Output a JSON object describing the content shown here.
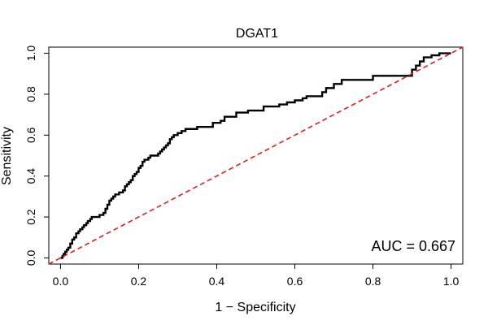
{
  "chart_data": {
    "type": "line",
    "title": "DGAT1",
    "xlabel": "1 − Specificity",
    "ylabel": "Sensitivity",
    "xlim": [
      -0.03,
      1.03
    ],
    "ylim": [
      -0.03,
      1.03
    ],
    "xticks": [
      0.0,
      0.2,
      0.4,
      0.6,
      0.8,
      1.0
    ],
    "xtick_labels": [
      "0.0",
      "0.2",
      "0.4",
      "0.6",
      "0.8",
      "1.0"
    ],
    "yticks": [
      0.0,
      0.2,
      0.4,
      0.6,
      0.8,
      1.0
    ],
    "ytick_labels": [
      "0.0",
      "0.2",
      "0.4",
      "0.6",
      "0.8",
      "1.0"
    ],
    "annotation": "AUC = 0.667",
    "series": [
      {
        "name": "ROC curve",
        "color": "#000000",
        "step": true,
        "x": [
          0.0,
          0.005,
          0.008,
          0.012,
          0.016,
          0.02,
          0.025,
          0.03,
          0.035,
          0.04,
          0.046,
          0.05,
          0.056,
          0.06,
          0.066,
          0.07,
          0.076,
          0.08,
          0.09,
          0.1,
          0.11,
          0.115,
          0.12,
          0.125,
          0.13,
          0.135,
          0.14,
          0.15,
          0.16,
          0.165,
          0.17,
          0.175,
          0.18,
          0.185,
          0.19,
          0.195,
          0.2,
          0.205,
          0.21,
          0.215,
          0.22,
          0.225,
          0.23,
          0.24,
          0.25,
          0.255,
          0.26,
          0.265,
          0.27,
          0.275,
          0.28,
          0.285,
          0.29,
          0.3,
          0.31,
          0.32,
          0.34,
          0.35,
          0.38,
          0.39,
          0.4,
          0.41,
          0.42,
          0.45,
          0.48,
          0.52,
          0.56,
          0.58,
          0.6,
          0.62,
          0.63,
          0.66,
          0.67,
          0.68,
          0.7,
          0.72,
          0.76,
          0.8,
          0.86,
          0.9,
          0.91,
          0.92,
          0.93,
          0.95,
          0.97,
          1.0
        ],
        "y": [
          0.0,
          0.01,
          0.02,
          0.03,
          0.04,
          0.05,
          0.07,
          0.09,
          0.1,
          0.12,
          0.13,
          0.14,
          0.15,
          0.16,
          0.17,
          0.18,
          0.19,
          0.2,
          0.2,
          0.21,
          0.22,
          0.24,
          0.26,
          0.28,
          0.29,
          0.3,
          0.31,
          0.32,
          0.33,
          0.35,
          0.36,
          0.37,
          0.38,
          0.4,
          0.41,
          0.42,
          0.44,
          0.45,
          0.47,
          0.48,
          0.48,
          0.49,
          0.5,
          0.5,
          0.51,
          0.52,
          0.53,
          0.54,
          0.55,
          0.56,
          0.58,
          0.59,
          0.6,
          0.61,
          0.62,
          0.63,
          0.63,
          0.64,
          0.64,
          0.66,
          0.66,
          0.67,
          0.69,
          0.71,
          0.72,
          0.74,
          0.75,
          0.76,
          0.77,
          0.78,
          0.79,
          0.79,
          0.81,
          0.83,
          0.85,
          0.87,
          0.87,
          0.89,
          0.89,
          0.92,
          0.94,
          0.96,
          0.98,
          0.99,
          1.0,
          1.0
        ]
      },
      {
        "name": "Chance diagonal",
        "color": "#e41a1c",
        "dashed": true,
        "x": [
          -0.03,
          1.03
        ],
        "y": [
          -0.03,
          1.03
        ]
      }
    ]
  }
}
